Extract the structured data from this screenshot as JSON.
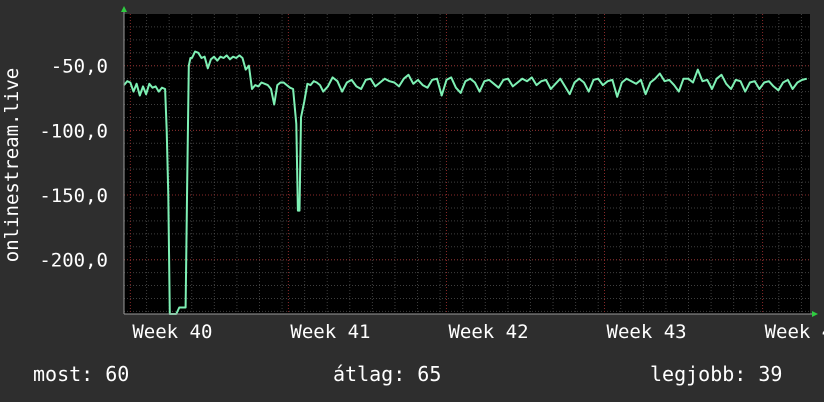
{
  "chart_data": {
    "type": "line",
    "title": "",
    "xlabel": "",
    "ylabel": "onlinestream.live",
    "yticks": [
      "-50,0",
      "-100,0",
      "-150,0",
      "-200,0"
    ],
    "ytick_values": [
      -50,
      -100,
      -150,
      -200
    ],
    "ylim": [
      -242,
      -10
    ],
    "xticks": [
      "Week 40",
      "Week 41",
      "Week 42",
      "Week 43",
      "Week 4"
    ],
    "xtick_values": [
      0,
      1,
      2,
      3,
      4
    ],
    "xlim": [
      -0.04,
      4.3
    ],
    "grid": true,
    "background": "#000000",
    "line_color": "#7ef0b4",
    "grid_color": "#5a5a5a",
    "week_line_color": "#8a2a2a",
    "axis_arrow_color": "#2ecc40",
    "series": [
      {
        "values": [
          [
            -0.04,
            -65
          ],
          [
            -0.02,
            -62
          ],
          [
            0,
            -63
          ],
          [
            0.02,
            -70
          ],
          [
            0.04,
            -64
          ],
          [
            0.06,
            -73
          ],
          [
            0.08,
            -66
          ],
          [
            0.1,
            -72
          ],
          [
            0.12,
            -64
          ],
          [
            0.14,
            -67
          ],
          [
            0.16,
            -66
          ],
          [
            0.18,
            -70
          ],
          [
            0.2,
            -67
          ],
          [
            0.22,
            -68
          ],
          [
            0.23,
            -100
          ],
          [
            0.24,
            -150
          ],
          [
            0.25,
            -242
          ],
          [
            0.27,
            -242
          ],
          [
            0.29,
            -242
          ],
          [
            0.31,
            -237
          ],
          [
            0.33,
            -237
          ],
          [
            0.35,
            -237
          ],
          [
            0.36,
            -140
          ],
          [
            0.37,
            -50
          ],
          [
            0.38,
            -44
          ],
          [
            0.39,
            -44
          ],
          [
            0.41,
            -39
          ],
          [
            0.43,
            -40
          ],
          [
            0.45,
            -44
          ],
          [
            0.47,
            -43
          ],
          [
            0.49,
            -52
          ],
          [
            0.51,
            -45
          ],
          [
            0.53,
            -43
          ],
          [
            0.55,
            -46
          ],
          [
            0.57,
            -43
          ],
          [
            0.59,
            -44
          ],
          [
            0.61,
            -42
          ],
          [
            0.63,
            -45
          ],
          [
            0.65,
            -43
          ],
          [
            0.67,
            -44
          ],
          [
            0.69,
            -42
          ],
          [
            0.71,
            -44
          ],
          [
            0.73,
            -53
          ],
          [
            0.75,
            -50
          ],
          [
            0.77,
            -68
          ],
          [
            0.79,
            -65
          ],
          [
            0.81,
            -66
          ],
          [
            0.83,
            -63
          ],
          [
            0.85,
            -64
          ],
          [
            0.87,
            -65
          ],
          [
            0.89,
            -68
          ],
          [
            0.91,
            -80
          ],
          [
            0.93,
            -65
          ],
          [
            0.95,
            -63
          ],
          [
            0.97,
            -63
          ],
          [
            0.99,
            -65
          ],
          [
            1.01,
            -67
          ],
          [
            1.03,
            -68
          ],
          [
            1.05,
            -95
          ],
          [
            1.06,
            -162
          ],
          [
            1.07,
            -162
          ],
          [
            1.08,
            -90
          ],
          [
            1.1,
            -78
          ],
          [
            1.12,
            -64
          ],
          [
            1.14,
            -65
          ],
          [
            1.16,
            -62
          ],
          [
            1.18,
            -63
          ],
          [
            1.2,
            -65
          ],
          [
            1.22,
            -70
          ],
          [
            1.25,
            -66
          ],
          [
            1.28,
            -59
          ],
          [
            1.31,
            -62
          ],
          [
            1.34,
            -70
          ],
          [
            1.37,
            -63
          ],
          [
            1.4,
            -61
          ],
          [
            1.43,
            -66
          ],
          [
            1.46,
            -68
          ],
          [
            1.49,
            -61
          ],
          [
            1.52,
            -60
          ],
          [
            1.55,
            -66
          ],
          [
            1.58,
            -63
          ],
          [
            1.61,
            -60
          ],
          [
            1.64,
            -62
          ],
          [
            1.67,
            -63
          ],
          [
            1.7,
            -66
          ],
          [
            1.73,
            -60
          ],
          [
            1.76,
            -57
          ],
          [
            1.79,
            -64
          ],
          [
            1.82,
            -61
          ],
          [
            1.85,
            -65
          ],
          [
            1.88,
            -67
          ],
          [
            1.91,
            -61
          ],
          [
            1.94,
            -60
          ],
          [
            1.97,
            -73
          ],
          [
            2,
            -61
          ],
          [
            2.03,
            -59
          ],
          [
            2.06,
            -67
          ],
          [
            2.09,
            -71
          ],
          [
            2.12,
            -62
          ],
          [
            2.15,
            -60
          ],
          [
            2.18,
            -63
          ],
          [
            2.21,
            -70
          ],
          [
            2.24,
            -62
          ],
          [
            2.27,
            -61
          ],
          [
            2.3,
            -64
          ],
          [
            2.33,
            -67
          ],
          [
            2.36,
            -61
          ],
          [
            2.39,
            -60
          ],
          [
            2.42,
            -66
          ],
          [
            2.45,
            -63
          ],
          [
            2.48,
            -60
          ],
          [
            2.51,
            -62
          ],
          [
            2.54,
            -59
          ],
          [
            2.57,
            -65
          ],
          [
            2.6,
            -62
          ],
          [
            2.63,
            -61
          ],
          [
            2.66,
            -68
          ],
          [
            2.69,
            -64
          ],
          [
            2.72,
            -60
          ],
          [
            2.75,
            -66
          ],
          [
            2.78,
            -72
          ],
          [
            2.81,
            -63
          ],
          [
            2.84,
            -60
          ],
          [
            2.87,
            -63
          ],
          [
            2.9,
            -70
          ],
          [
            2.93,
            -61
          ],
          [
            2.96,
            -60
          ],
          [
            2.99,
            -65
          ],
          [
            3.02,
            -62
          ],
          [
            3.05,
            -61
          ],
          [
            3.08,
            -74
          ],
          [
            3.11,
            -63
          ],
          [
            3.14,
            -60
          ],
          [
            3.17,
            -62
          ],
          [
            3.2,
            -64
          ],
          [
            3.23,
            -61
          ],
          [
            3.26,
            -72
          ],
          [
            3.29,
            -63
          ],
          [
            3.32,
            -60
          ],
          [
            3.35,
            -56
          ],
          [
            3.38,
            -62
          ],
          [
            3.41,
            -61
          ],
          [
            3.44,
            -65
          ],
          [
            3.47,
            -70
          ],
          [
            3.5,
            -60
          ],
          [
            3.53,
            -60
          ],
          [
            3.56,
            -63
          ],
          [
            3.59,
            -53
          ],
          [
            3.62,
            -62
          ],
          [
            3.65,
            -61
          ],
          [
            3.68,
            -68
          ],
          [
            3.71,
            -60
          ],
          [
            3.74,
            -57
          ],
          [
            3.77,
            -64
          ],
          [
            3.8,
            -68
          ],
          [
            3.83,
            -61
          ],
          [
            3.86,
            -62
          ],
          [
            3.89,
            -70
          ],
          [
            3.92,
            -63
          ],
          [
            3.95,
            -62
          ],
          [
            3.98,
            -68
          ],
          [
            4.01,
            -63
          ],
          [
            4.04,
            -62
          ],
          [
            4.07,
            -66
          ],
          [
            4.1,
            -69
          ],
          [
            4.13,
            -63
          ],
          [
            4.16,
            -61
          ],
          [
            4.19,
            -68
          ],
          [
            4.22,
            -63
          ],
          [
            4.25,
            -61
          ],
          [
            4.28,
            -60
          ]
        ]
      }
    ]
  },
  "stats": {
    "now": "most: 60",
    "avg": "átlag: 65",
    "best": "legjobb: 39"
  }
}
